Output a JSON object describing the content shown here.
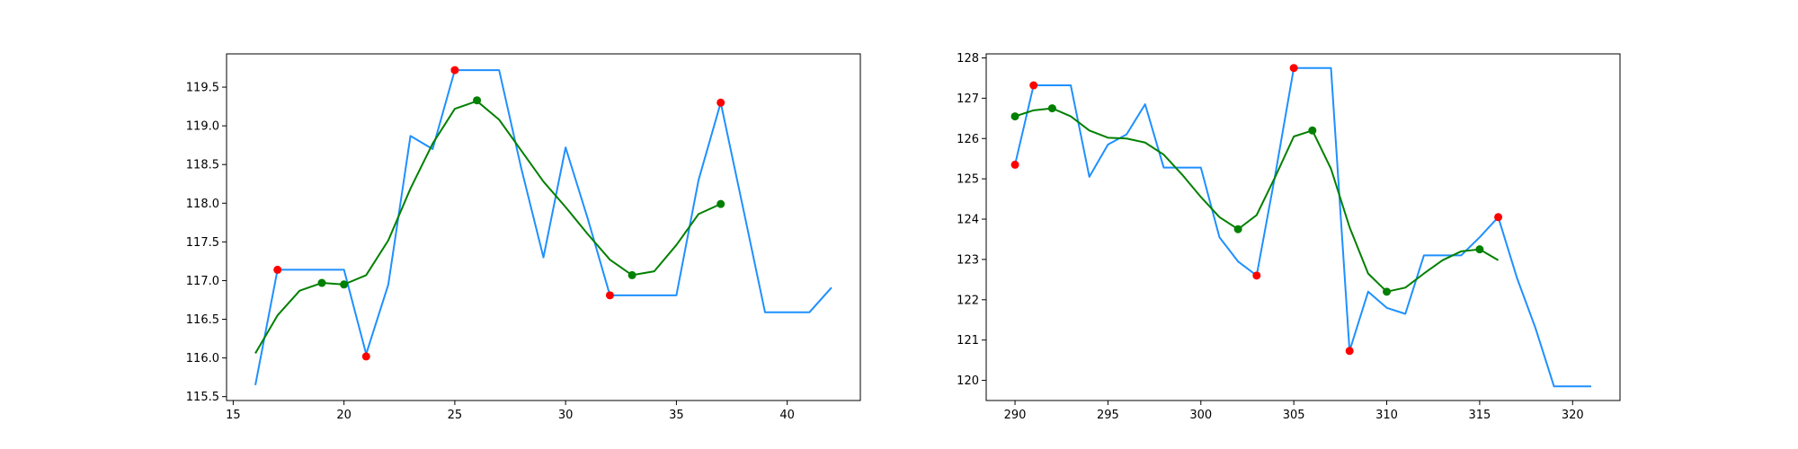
{
  "chart_data": [
    {
      "type": "line",
      "xlim": [
        14.7,
        43.3
      ],
      "ylim": [
        115.45,
        119.93
      ],
      "xticks": [
        15,
        20,
        25,
        30,
        35,
        40
      ],
      "yticks": [
        115.5,
        116.0,
        116.5,
        117.0,
        117.5,
        118.0,
        118.5,
        119.0,
        119.5
      ],
      "ytick_labels": [
        "115.5",
        "116.0",
        "116.5",
        "117.0",
        "117.5",
        "118.0",
        "118.5",
        "119.0",
        "119.5"
      ],
      "grid": false,
      "series": [
        {
          "color": "#1e90ff",
          "kind": "line",
          "x": [
            16,
            17,
            18,
            19,
            20,
            21,
            22,
            23,
            24,
            25,
            26,
            27,
            28,
            29,
            30,
            31,
            32,
            33,
            34,
            35,
            36,
            37,
            38,
            39,
            40,
            41,
            42
          ],
          "y": [
            115.65,
            117.14,
            117.14,
            117.14,
            117.14,
            116.05,
            116.95,
            118.87,
            118.7,
            119.72,
            119.72,
            119.72,
            118.45,
            117.3,
            118.72,
            117.8,
            116.81,
            116.81,
            116.81,
            116.81,
            118.3,
            119.3,
            117.95,
            116.59,
            116.59,
            116.59,
            116.91
          ]
        },
        {
          "color": "#008000",
          "kind": "line",
          "x": [
            16,
            17,
            18,
            19,
            20,
            21,
            22,
            23,
            24,
            25,
            26,
            27,
            28,
            29,
            30,
            31,
            32,
            33,
            34,
            35,
            36,
            37
          ],
          "y": [
            116.06,
            116.55,
            116.87,
            116.97,
            116.95,
            117.07,
            117.52,
            118.19,
            118.77,
            119.22,
            119.32,
            119.08,
            118.68,
            118.28,
            117.95,
            117.6,
            117.27,
            117.07,
            117.12,
            117.46,
            117.86,
            117.99
          ]
        },
        {
          "color": "#ff0000",
          "kind": "scatter",
          "x": [
            17,
            21,
            25,
            32,
            37
          ],
          "y": [
            117.14,
            116.02,
            119.72,
            116.81,
            119.3
          ]
        },
        {
          "color": "#008000",
          "kind": "scatter",
          "x": [
            19,
            20,
            26,
            33,
            37
          ],
          "y": [
            116.97,
            116.95,
            119.33,
            117.07,
            117.99
          ]
        }
      ]
    },
    {
      "type": "line",
      "xlim": [
        288.45,
        322.55
      ],
      "ylim": [
        119.5,
        128.1
      ],
      "xticks": [
        290,
        295,
        300,
        305,
        310,
        315,
        320
      ],
      "yticks": [
        120,
        121,
        122,
        123,
        124,
        125,
        126,
        127,
        128
      ],
      "ytick_labels": [
        "120",
        "121",
        "122",
        "123",
        "124",
        "125",
        "126",
        "127",
        "128"
      ],
      "grid": false,
      "series": [
        {
          "color": "#1e90ff",
          "kind": "line",
          "x": [
            290,
            291,
            292,
            293,
            294,
            295,
            296,
            297,
            298,
            299,
            300,
            301,
            302,
            303,
            304,
            305,
            306,
            307,
            308,
            309,
            310,
            311,
            312,
            313,
            314,
            315,
            316,
            317,
            318,
            319,
            320,
            321
          ],
          "y": [
            125.35,
            127.32,
            127.32,
            127.32,
            125.05,
            125.85,
            126.1,
            126.85,
            125.28,
            125.28,
            125.28,
            123.55,
            122.95,
            122.6,
            125.1,
            127.75,
            127.75,
            127.75,
            120.73,
            122.2,
            121.8,
            121.65,
            123.1,
            123.1,
            123.1,
            123.55,
            124.05,
            122.55,
            121.3,
            119.85,
            119.85,
            119.85
          ]
        },
        {
          "color": "#008000",
          "kind": "line",
          "x": [
            290,
            291,
            292,
            293,
            294,
            295,
            296,
            297,
            298,
            299,
            300,
            301,
            302,
            303,
            304,
            305,
            306,
            307,
            308,
            309,
            310,
            311,
            312,
            313,
            314,
            315,
            316
          ],
          "y": [
            126.55,
            126.7,
            126.75,
            126.55,
            126.2,
            126.02,
            126.0,
            125.9,
            125.6,
            125.1,
            124.55,
            124.05,
            123.75,
            124.1,
            125.05,
            126.05,
            126.2,
            125.25,
            123.8,
            122.65,
            122.2,
            122.3,
            122.65,
            122.98,
            123.2,
            123.25,
            122.98
          ]
        },
        {
          "color": "#ff0000",
          "kind": "scatter",
          "x": [
            290,
            291,
            303,
            305,
            308,
            316
          ],
          "y": [
            125.35,
            127.32,
            122.6,
            127.75,
            120.73,
            124.05
          ]
        },
        {
          "color": "#008000",
          "kind": "scatter",
          "x": [
            290,
            292,
            302,
            306,
            310,
            315
          ],
          "y": [
            126.55,
            126.75,
            123.75,
            126.2,
            122.2,
            123.25
          ]
        }
      ]
    }
  ]
}
